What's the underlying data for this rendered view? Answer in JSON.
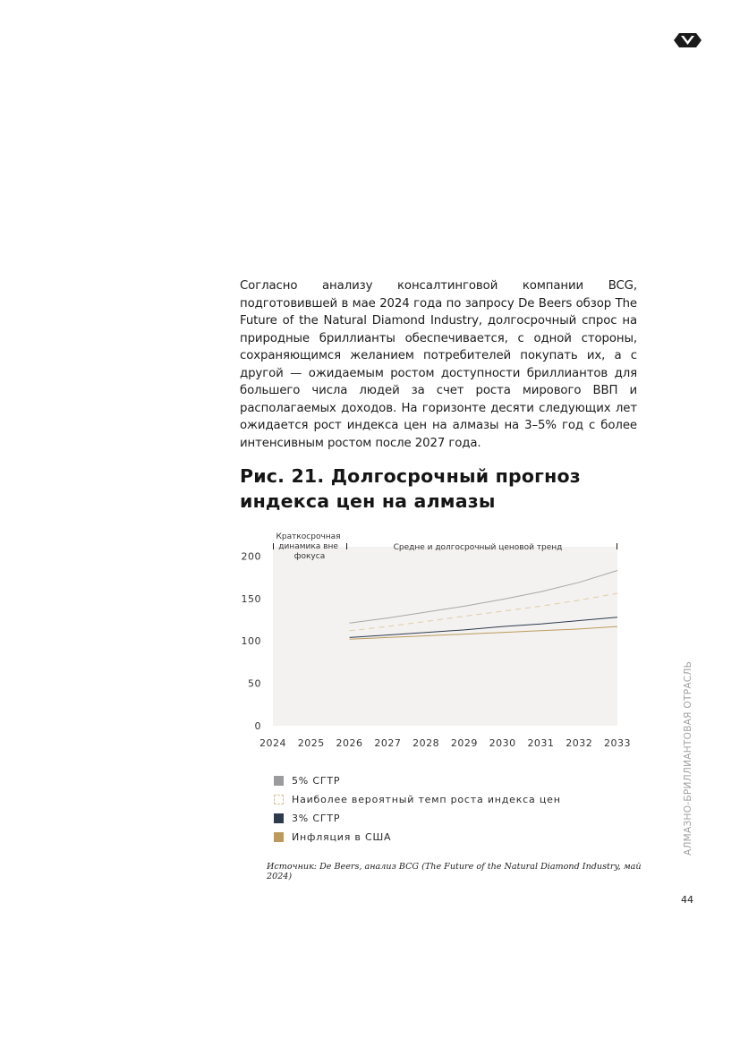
{
  "header": {
    "logo_icon": "diamond-logo-icon"
  },
  "body": {
    "paragraph": "Согласно анализу консалтинговой компании BCG, подготовившей в мае 2024 года по запросу De Beers обзор The Future of the Natural Diamond Industry, долгосрочный спрос на природные бриллианты обеспечивается, с одной стороны, сохраняющимся желанием потребителей покупать их, а с другой — ожидаемым ростом доступности бриллиантов для большего числа людей за счет роста мирового ВВП и располагаемых доходов. На горизонте десяти следующих лет ожидается рост индекса цен на алмазы на 3–5% год с более интенсивным ростом после 2027 года."
  },
  "figure": {
    "title": "Рис. 21. Долгосрочный прогноз индекса цен на алмазы",
    "source": "Источник: De Beers, анализ BCG (The Future of the Natural Diamond Industry, май 2024)"
  },
  "chart_data": {
    "type": "line",
    "title": "",
    "xlabel": "",
    "ylabel": "",
    "x": [
      2024,
      2025,
      2026,
      2027,
      2028,
      2029,
      2030,
      2031,
      2032,
      2033
    ],
    "x_ticks": [
      "2024",
      "2025",
      "2026",
      "2027",
      "2028",
      "2029",
      "2030",
      "2031",
      "2032",
      "2033"
    ],
    "y_ticks": [
      "0",
      "50",
      "100",
      "150",
      "200"
    ],
    "ylim": [
      0,
      211
    ],
    "grid": false,
    "annotations": {
      "short_term": "Краткосрочная динамика вне фокуса",
      "long_term": "Средне и долгосрочный ценовой тренд"
    },
    "series": [
      {
        "name": "5% СГТР",
        "color": "#a7a7a9",
        "dash": "solid",
        "x": [
          2026,
          2027,
          2028,
          2029,
          2030,
          2031,
          2032,
          2033
        ],
        "values": [
          121,
          127,
          134,
          141,
          149,
          158,
          169,
          183
        ]
      },
      {
        "name": "Наиболее вероятный темп роста индекса цен",
        "color": "#e2c9a4",
        "dash": "dashed",
        "x": [
          2026,
          2027,
          2028,
          2029,
          2030,
          2031,
          2032,
          2033
        ],
        "values": [
          112,
          117,
          123,
          129,
          135,
          141,
          148,
          156
        ]
      },
      {
        "name": "3% СГТР",
        "color": "#2e3a4e",
        "dash": "solid",
        "x": [
          2026,
          2027,
          2028,
          2029,
          2030,
          2031,
          2032,
          2033
        ],
        "values": [
          104,
          107,
          110,
          113,
          117,
          120,
          124,
          128
        ]
      },
      {
        "name": "Инфляция в США",
        "color": "#bd9a5c",
        "dash": "solid",
        "x": [
          2026,
          2027,
          2028,
          2029,
          2030,
          2031,
          2032,
          2033
        ],
        "values": [
          102,
          104,
          106,
          108,
          110,
          112,
          114,
          117
        ]
      }
    ]
  },
  "legend": {
    "items": [
      {
        "label": "5% СГТР",
        "color": "#9b9b9d",
        "style": "solid"
      },
      {
        "label": "Наиболее вероятный темп роста индекса цен",
        "color": "#d9c3a0",
        "style": "dashed"
      },
      {
        "label": "3% СГТР",
        "color": "#2e3a4e",
        "style": "solid"
      },
      {
        "label": "Инфляция в США",
        "color": "#bd9a5c",
        "style": "solid"
      }
    ]
  },
  "sidebar": {
    "label": "АЛМАЗНО-БРИЛЛИАНТОВАЯ ОТРАСЛЬ"
  },
  "footer": {
    "page_number": "44"
  }
}
